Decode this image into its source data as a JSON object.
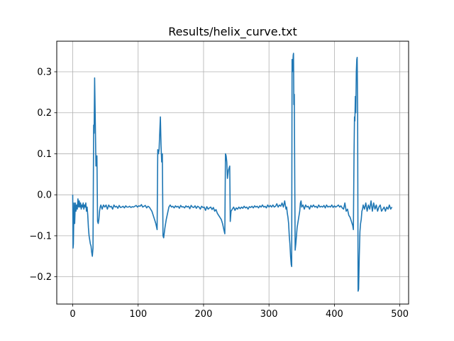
{
  "chart_data": {
    "type": "line",
    "title": "Results/helix_curve.txt",
    "xlabel": "",
    "ylabel": "",
    "xlim": [
      -24.4,
      513.4
    ],
    "ylim": [
      -0.2665,
      0.3745
    ],
    "xticks": [
      0,
      100,
      200,
      300,
      400,
      500
    ],
    "yticks": [
      -0.2,
      -0.1,
      0.0,
      0.1,
      0.2,
      0.3
    ],
    "xtick_labels": [
      "0",
      "100",
      "200",
      "300",
      "400",
      "500"
    ],
    "ytick_labels": [
      "−0.2",
      "−0.1",
      "0.0",
      "0.1",
      "0.2",
      "0.3"
    ],
    "grid": true,
    "legend": "none",
    "series": [
      {
        "color": "#1f77b4",
        "points": [
          [
            0,
            0.0
          ],
          [
            0.5,
            -0.13
          ],
          [
            1,
            -0.12
          ],
          [
            2,
            -0.02
          ],
          [
            3,
            -0.07
          ],
          [
            4,
            -0.02
          ],
          [
            5,
            -0.04
          ],
          [
            6,
            -0.025
          ],
          [
            7,
            -0.035
          ],
          [
            8,
            -0.01
          ],
          [
            9,
            -0.03
          ],
          [
            10,
            -0.015
          ],
          [
            11,
            -0.03
          ],
          [
            12,
            -0.02
          ],
          [
            13,
            -0.035
          ],
          [
            14,
            -0.025
          ],
          [
            15,
            -0.03
          ],
          [
            16,
            -0.02
          ],
          [
            17,
            -0.035
          ],
          [
            18,
            -0.025
          ],
          [
            19,
            -0.03
          ],
          [
            20,
            -0.02
          ],
          [
            21,
            -0.04
          ],
          [
            22,
            -0.03
          ],
          [
            23,
            -0.05
          ],
          [
            24,
            -0.08
          ],
          [
            25,
            -0.1
          ],
          [
            26,
            -0.11
          ],
          [
            27,
            -0.12
          ],
          [
            28,
            -0.125
          ],
          [
            29,
            -0.14
          ],
          [
            30,
            -0.15
          ],
          [
            31,
            -0.13
          ],
          [
            32,
            0.17
          ],
          [
            32.7,
            0.15
          ],
          [
            33.5,
            0.285
          ],
          [
            34.5,
            0.18
          ],
          [
            35.5,
            0.07
          ],
          [
            36.5,
            0.09
          ],
          [
            37,
            0.095
          ],
          [
            38,
            -0.065
          ],
          [
            39,
            -0.07
          ],
          [
            40,
            -0.06
          ],
          [
            41,
            -0.04
          ],
          [
            42,
            -0.03
          ],
          [
            43,
            -0.025
          ],
          [
            45,
            -0.035
          ],
          [
            47,
            -0.025
          ],
          [
            49,
            -0.03
          ],
          [
            51,
            -0.025
          ],
          [
            53,
            -0.035
          ],
          [
            55,
            -0.025
          ],
          [
            57,
            -0.03
          ],
          [
            59,
            -0.028
          ],
          [
            61,
            -0.035
          ],
          [
            63,
            -0.025
          ],
          [
            65,
            -0.03
          ],
          [
            67,
            -0.028
          ],
          [
            69,
            -0.033
          ],
          [
            71,
            -0.026
          ],
          [
            73,
            -0.031
          ],
          [
            75,
            -0.03
          ],
          [
            77,
            -0.028
          ],
          [
            79,
            -0.032
          ],
          [
            81,
            -0.027
          ],
          [
            83,
            -0.03
          ],
          [
            85,
            -0.03
          ],
          [
            87,
            -0.028
          ],
          [
            89,
            -0.031
          ],
          [
            91,
            -0.029
          ],
          [
            93,
            -0.03
          ],
          [
            95,
            -0.028
          ],
          [
            97,
            -0.026
          ],
          [
            99,
            -0.03
          ],
          [
            101,
            -0.027
          ],
          [
            103,
            -0.028
          ],
          [
            105,
            -0.024
          ],
          [
            107,
            -0.03
          ],
          [
            109,
            -0.028
          ],
          [
            111,
            -0.026
          ],
          [
            113,
            -0.032
          ],
          [
            115,
            -0.028
          ],
          [
            117,
            -0.03
          ],
          [
            119,
            -0.035
          ],
          [
            121,
            -0.04
          ],
          [
            123,
            -0.05
          ],
          [
            125,
            -0.06
          ],
          [
            127,
            -0.07
          ],
          [
            129,
            -0.085
          ],
          [
            130,
            0.11
          ],
          [
            131,
            0.1
          ],
          [
            132,
            0.11
          ],
          [
            133,
            0.15
          ],
          [
            134,
            0.19
          ],
          [
            135,
            0.12
          ],
          [
            136,
            0.08
          ],
          [
            137,
            0.1
          ],
          [
            138,
            -0.1
          ],
          [
            139,
            -0.105
          ],
          [
            141,
            -0.08
          ],
          [
            143,
            -0.06
          ],
          [
            145,
            -0.045
          ],
          [
            147,
            -0.03
          ],
          [
            149,
            -0.025
          ],
          [
            151,
            -0.03
          ],
          [
            153,
            -0.028
          ],
          [
            155,
            -0.032
          ],
          [
            157,
            -0.027
          ],
          [
            159,
            -0.03
          ],
          [
            161,
            -0.028
          ],
          [
            163,
            -0.033
          ],
          [
            165,
            -0.026
          ],
          [
            167,
            -0.03
          ],
          [
            169,
            -0.029
          ],
          [
            171,
            -0.032
          ],
          [
            173,
            -0.027
          ],
          [
            175,
            -0.03
          ],
          [
            177,
            -0.028
          ],
          [
            179,
            -0.034
          ],
          [
            181,
            -0.026
          ],
          [
            183,
            -0.03
          ],
          [
            185,
            -0.031
          ],
          [
            187,
            -0.027
          ],
          [
            189,
            -0.033
          ],
          [
            191,
            -0.028
          ],
          [
            193,
            -0.03
          ],
          [
            195,
            -0.035
          ],
          [
            197,
            -0.028
          ],
          [
            199,
            -0.031
          ],
          [
            201,
            -0.03
          ],
          [
            203,
            -0.038
          ],
          [
            205,
            -0.029
          ],
          [
            207,
            -0.035
          ],
          [
            209,
            -0.032
          ],
          [
            211,
            -0.03
          ],
          [
            213,
            -0.036
          ],
          [
            215,
            -0.031
          ],
          [
            217,
            -0.04
          ],
          [
            219,
            -0.036
          ],
          [
            221,
            -0.045
          ],
          [
            223,
            -0.05
          ],
          [
            225,
            -0.055
          ],
          [
            227,
            -0.06
          ],
          [
            229,
            -0.07
          ],
          [
            231,
            -0.085
          ],
          [
            232.5,
            -0.095
          ],
          [
            233.5,
            0.1
          ],
          [
            234.5,
            0.095
          ],
          [
            235.5,
            0.08
          ],
          [
            236.5,
            0.04
          ],
          [
            238,
            0.06
          ],
          [
            239,
            0.065
          ],
          [
            240,
            0.07
          ],
          [
            240.8,
            -0.065
          ],
          [
            242,
            -0.04
          ],
          [
            244,
            -0.035
          ],
          [
            246,
            -0.03
          ],
          [
            248,
            -0.038
          ],
          [
            250,
            -0.032
          ],
          [
            252,
            -0.035
          ],
          [
            254,
            -0.03
          ],
          [
            256,
            -0.034
          ],
          [
            258,
            -0.03
          ],
          [
            260,
            -0.033
          ],
          [
            262,
            -0.028
          ],
          [
            264,
            -0.032
          ],
          [
            266,
            -0.03
          ],
          [
            268,
            -0.035
          ],
          [
            270,
            -0.029
          ],
          [
            272,
            -0.031
          ],
          [
            274,
            -0.028
          ],
          [
            276,
            -0.032
          ],
          [
            278,
            -0.027
          ],
          [
            280,
            -0.03
          ],
          [
            282,
            -0.028
          ],
          [
            284,
            -0.032
          ],
          [
            286,
            -0.027
          ],
          [
            288,
            -0.03
          ],
          [
            290,
            -0.025
          ],
          [
            292,
            -0.03
          ],
          [
            294,
            -0.028
          ],
          [
            296,
            -0.032
          ],
          [
            298,
            -0.025
          ],
          [
            300,
            -0.03
          ],
          [
            302,
            -0.026
          ],
          [
            304,
            -0.03
          ],
          [
            306,
            -0.025
          ],
          [
            308,
            -0.03
          ],
          [
            310,
            -0.028
          ],
          [
            312,
            -0.022
          ],
          [
            314,
            -0.03
          ],
          [
            316,
            -0.025
          ],
          [
            318,
            -0.028
          ],
          [
            320,
            -0.02
          ],
          [
            322,
            -0.03
          ],
          [
            324,
            -0.015
          ],
          [
            325,
            -0.025
          ],
          [
            326,
            -0.035
          ],
          [
            327,
            -0.03
          ],
          [
            328,
            -0.045
          ],
          [
            329,
            -0.055
          ],
          [
            330,
            -0.07
          ],
          [
            331,
            -0.1
          ],
          [
            332,
            -0.12
          ],
          [
            333,
            -0.15
          ],
          [
            334,
            -0.17
          ],
          [
            334.7,
            -0.175
          ],
          [
            335.3,
            0.33
          ],
          [
            336,
            0.3
          ],
          [
            337,
            0.34
          ],
          [
            337.5,
            0.345
          ],
          [
            338,
            0.22
          ],
          [
            338.7,
            0.245
          ],
          [
            339.3,
            0.06
          ],
          [
            340,
            -0.135
          ],
          [
            341,
            -0.12
          ],
          [
            342,
            -0.1
          ],
          [
            343,
            -0.08
          ],
          [
            344,
            -0.07
          ],
          [
            345,
            -0.06
          ],
          [
            346,
            -0.05
          ],
          [
            347,
            -0.04
          ],
          [
            348,
            -0.02
          ],
          [
            349,
            -0.015
          ],
          [
            350,
            -0.03
          ],
          [
            352,
            -0.025
          ],
          [
            354,
            -0.035
          ],
          [
            356,
            -0.025
          ],
          [
            358,
            -0.03
          ],
          [
            360,
            -0.028
          ],
          [
            362,
            -0.035
          ],
          [
            364,
            -0.026
          ],
          [
            366,
            -0.03
          ],
          [
            368,
            -0.025
          ],
          [
            370,
            -0.03
          ],
          [
            372,
            -0.028
          ],
          [
            374,
            -0.032
          ],
          [
            376,
            -0.025
          ],
          [
            378,
            -0.03
          ],
          [
            380,
            -0.028
          ],
          [
            382,
            -0.03
          ],
          [
            384,
            -0.026
          ],
          [
            386,
            -0.032
          ],
          [
            388,
            -0.025
          ],
          [
            390,
            -0.03
          ],
          [
            392,
            -0.028
          ],
          [
            394,
            -0.03
          ],
          [
            396,
            -0.025
          ],
          [
            398,
            -0.031
          ],
          [
            400,
            -0.027
          ],
          [
            402,
            -0.03
          ],
          [
            404,
            -0.028
          ],
          [
            406,
            -0.025
          ],
          [
            408,
            -0.03
          ],
          [
            410,
            -0.027
          ],
          [
            412,
            -0.032
          ],
          [
            414,
            -0.035
          ],
          [
            416,
            -0.02
          ],
          [
            418,
            -0.04
          ],
          [
            420,
            -0.035
          ],
          [
            422,
            -0.05
          ],
          [
            424,
            -0.055
          ],
          [
            426,
            -0.065
          ],
          [
            428,
            -0.075
          ],
          [
            429,
            -0.085
          ],
          [
            430,
            0.1
          ],
          [
            430.7,
            0.19
          ],
          [
            431.3,
            0.18
          ],
          [
            432,
            0.24
          ],
          [
            432.7,
            0.2
          ],
          [
            433.5,
            0.3
          ],
          [
            434.2,
            0.33
          ],
          [
            434.8,
            0.335
          ],
          [
            435.5,
            0.2
          ],
          [
            436.2,
            -0.235
          ],
          [
            437,
            -0.23
          ],
          [
            438,
            -0.15
          ],
          [
            439,
            -0.09
          ],
          [
            440,
            -0.07
          ],
          [
            441,
            -0.06
          ],
          [
            442,
            -0.04
          ],
          [
            443,
            -0.035
          ],
          [
            444,
            -0.025
          ],
          [
            446,
            -0.035
          ],
          [
            448,
            -0.02
          ],
          [
            450,
            -0.04
          ],
          [
            452,
            -0.025
          ],
          [
            454,
            -0.035
          ],
          [
            456,
            -0.015
          ],
          [
            458,
            -0.04
          ],
          [
            460,
            -0.02
          ],
          [
            462,
            -0.035
          ],
          [
            464,
            -0.025
          ],
          [
            466,
            -0.04
          ],
          [
            468,
            -0.03
          ],
          [
            470,
            -0.025
          ],
          [
            472,
            -0.04
          ],
          [
            474,
            -0.035
          ],
          [
            476,
            -0.03
          ],
          [
            478,
            -0.04
          ],
          [
            480,
            -0.03
          ],
          [
            482,
            -0.035
          ],
          [
            484,
            -0.025
          ],
          [
            486,
            -0.035
          ],
          [
            488,
            -0.03
          ]
        ]
      }
    ]
  }
}
